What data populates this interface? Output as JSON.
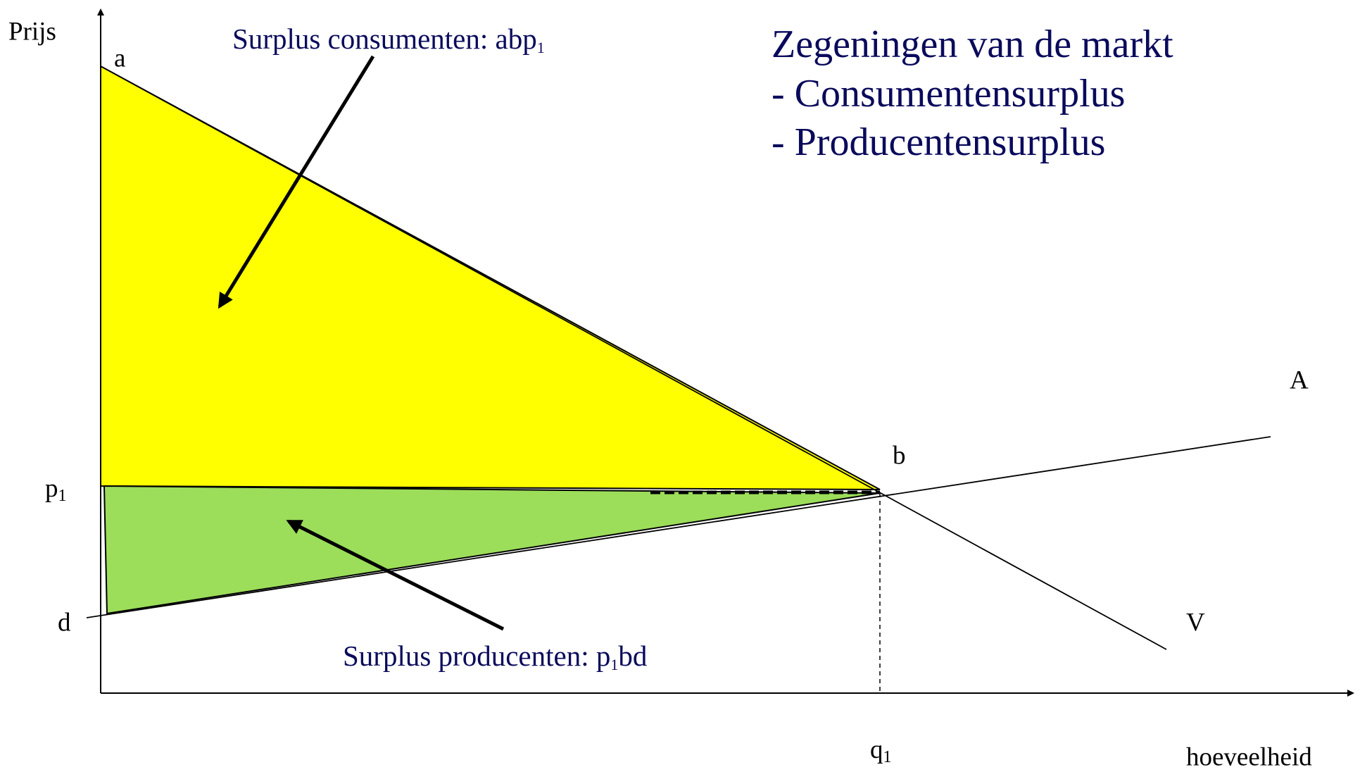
{
  "axis": {
    "y_label": "Prijs",
    "x_label": "hoeveelheid"
  },
  "points": {
    "a": "a",
    "b": "b",
    "d": "d",
    "p1": {
      "base": "p",
      "sub": "1"
    },
    "q1": {
      "base": "q",
      "sub": "1"
    }
  },
  "curves": {
    "supply": "A",
    "demand": "V"
  },
  "annotations": {
    "consumer": {
      "text": "Surplus consumenten: abp",
      "sub": "1"
    },
    "producer": {
      "text": "Surplus producenten: p",
      "sub": "1",
      "tail": "bd"
    }
  },
  "title": {
    "heading": "Zegeningen van de markt",
    "items": [
      "- Consumentensurplus",
      "- Producentensurplus"
    ]
  }
}
